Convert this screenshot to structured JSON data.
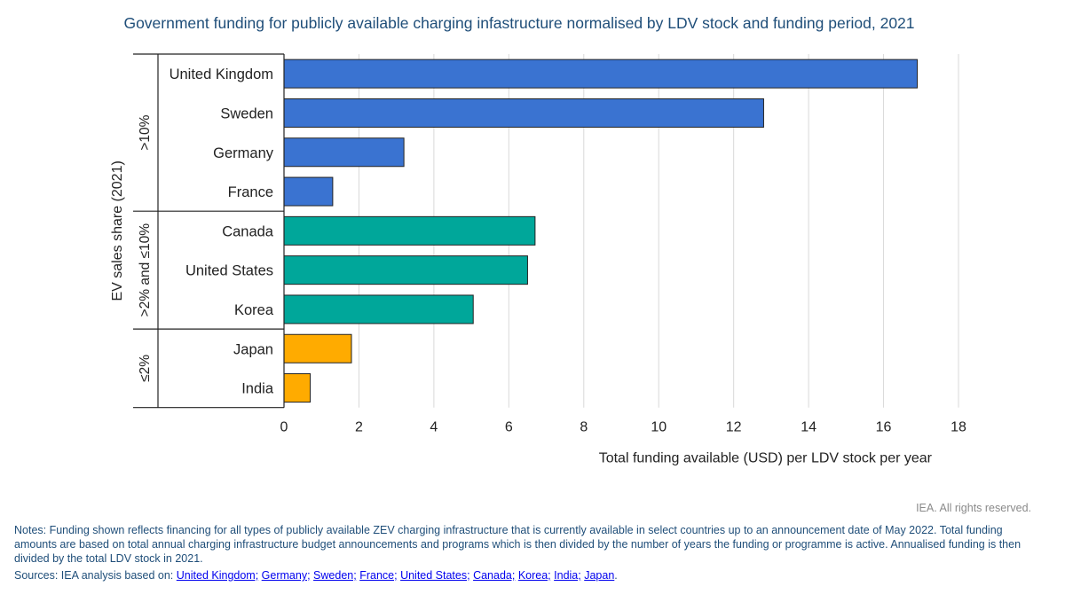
{
  "chart_data": {
    "type": "bar",
    "orientation": "horizontal",
    "title": "Government funding for publicly available charging infastructure normalised by LDV stock and funding period, 2021",
    "xlabel": "Total funding available (USD) per LDV stock per year",
    "ylabel": "EV sales share (2021)",
    "xlim": [
      0,
      18
    ],
    "xticks": [
      "0",
      "2",
      "4",
      "6",
      "8",
      "10",
      "12",
      "14",
      "16",
      "18"
    ],
    "grid": "vertical",
    "groups": [
      {
        "label": ">10%",
        "color": "#3a73d1",
        "categories": [
          "United Kingdom",
          "Sweden",
          "Germany",
          "France"
        ],
        "values": [
          16.9,
          12.8,
          3.2,
          1.3
        ]
      },
      {
        "label": ">2% and ≤10%",
        "color": "#00a79a",
        "categories": [
          "Canada",
          "United States",
          "Korea"
        ],
        "values": [
          6.7,
          6.5,
          5.05
        ]
      },
      {
        "label": "≤2%",
        "color": "#ffab00",
        "categories": [
          "Japan",
          "India"
        ],
        "values": [
          1.8,
          0.7
        ]
      }
    ]
  },
  "copyright": "IEA. All rights reserved.",
  "notes": "Notes: Funding shown reflects financing for all types of publicly available ZEV charging infrastructure that is currently available in select countries up to an announcement date of May 2022. Total funding amounts are based on total annual charging infrastructure budget announcements and programs which is then divided by the number of years the funding or programme is active. Annualised funding is then divided by the total LDV stock in 2021.",
  "sources": {
    "prefix": "Sources: IEA analysis based on:",
    "links": [
      "United Kingdom;",
      "Germany;",
      "Sweden;",
      "France;",
      "United States;",
      "Canada;",
      "Korea;",
      "India;",
      "Japan"
    ],
    "suffix": "."
  }
}
